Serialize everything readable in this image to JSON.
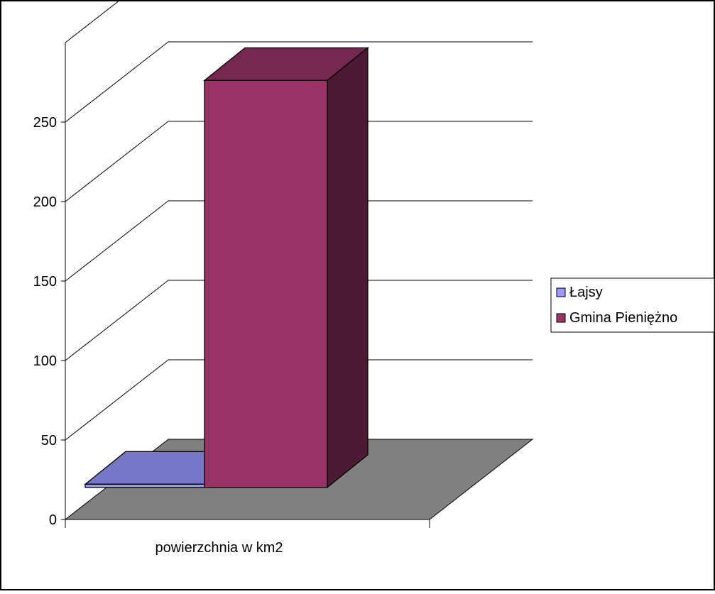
{
  "chart_data": {
    "type": "bar",
    "categories": [
      "powierzchnia w km2"
    ],
    "series": [
      {
        "name": "Łajsy",
        "values": [
          2
        ]
      },
      {
        "name": "Gmina Pieniężno",
        "values": [
          256
        ]
      }
    ],
    "ylim": [
      0,
      300
    ],
    "yticks": [
      0,
      50,
      100,
      150,
      200,
      250
    ],
    "grid": true,
    "legend": "right",
    "colors": {
      "series": [
        "#9999ff",
        "#993366"
      ],
      "floor": "#808080",
      "gridline": "#000000"
    }
  }
}
